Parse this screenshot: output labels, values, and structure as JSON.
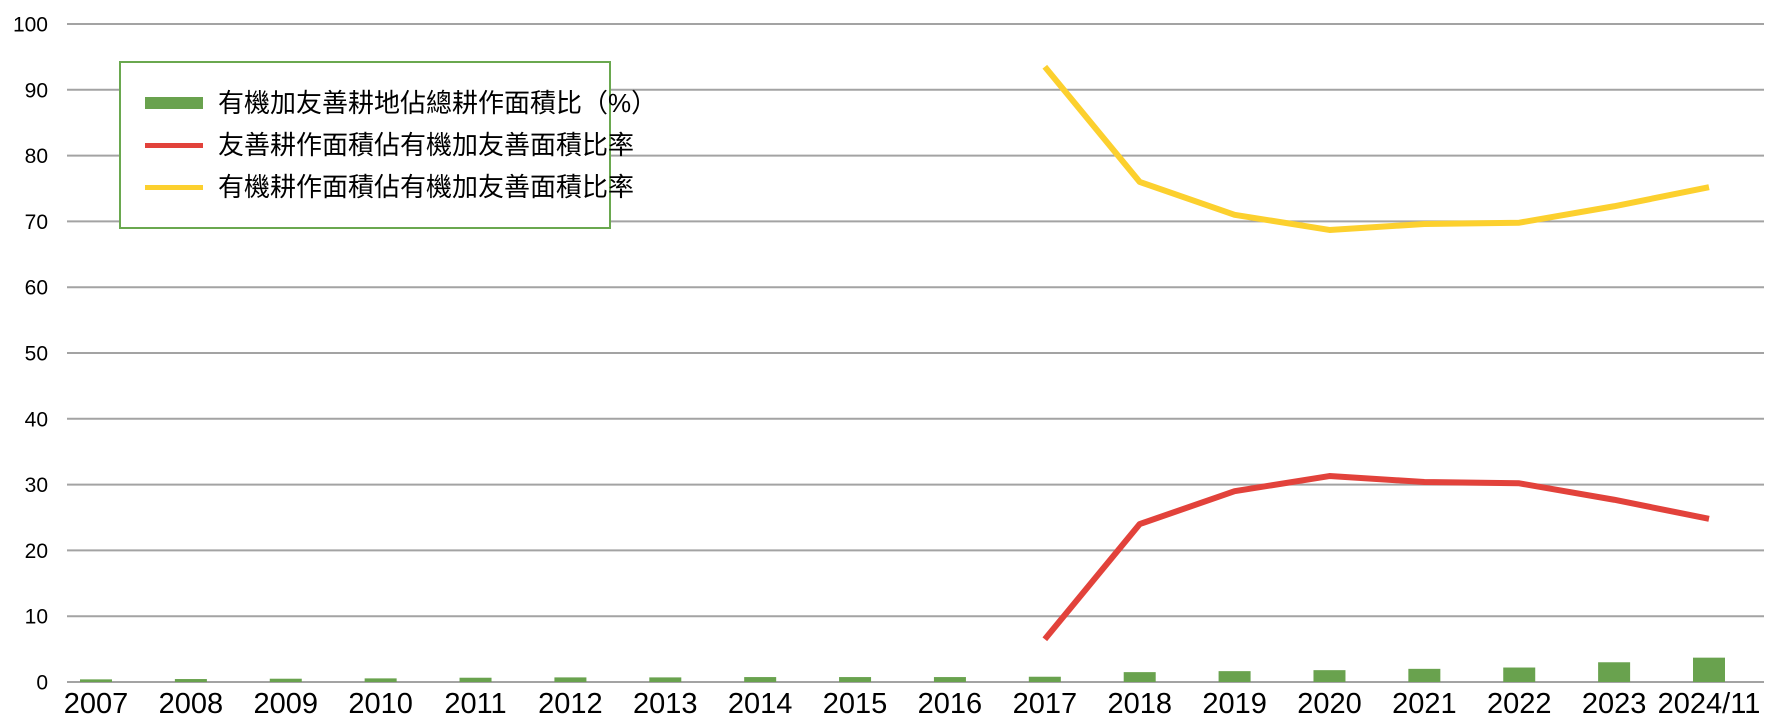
{
  "chart_data": {
    "type": "combo",
    "title": "",
    "xlabel": "",
    "ylabel": "",
    "categories": [
      "2007",
      "2008",
      "2009",
      "2010",
      "2011",
      "2012",
      "2013",
      "2014",
      "2015",
      "2016",
      "2017",
      "2018",
      "2019",
      "2020",
      "2021",
      "2022",
      "2023",
      "2024/11"
    ],
    "series": [
      {
        "name": "有機加友善耕地佔總耕作面積比（%）",
        "type": "bar",
        "color": "#69a24e",
        "values": [
          0.4,
          0.45,
          0.5,
          0.55,
          0.65,
          0.7,
          0.7,
          0.75,
          0.75,
          0.75,
          0.8,
          1.5,
          1.65,
          1.8,
          2.0,
          2.2,
          3.0,
          3.7
        ]
      },
      {
        "name": "友善耕作面積佔有機加友善面積比率",
        "type": "line",
        "color": "#e2423b",
        "values": [
          null,
          null,
          null,
          null,
          null,
          null,
          null,
          null,
          null,
          null,
          6.5,
          24.0,
          29.0,
          31.3,
          30.4,
          30.2,
          27.7,
          24.8
        ]
      },
      {
        "name": "有機耕作面積佔有機加友善面積比率",
        "type": "line",
        "color": "#fcd02e",
        "values": [
          null,
          null,
          null,
          null,
          null,
          null,
          null,
          null,
          null,
          null,
          93.5,
          76.0,
          71.0,
          68.7,
          69.6,
          69.8,
          72.3,
          75.2
        ]
      }
    ],
    "ylim": [
      0,
      100
    ],
    "ytick_interval": 10,
    "yticks": [
      0,
      10,
      20,
      30,
      40,
      50,
      60,
      70,
      80,
      90,
      100
    ],
    "grid": true,
    "grid_color": "#a3a3a3",
    "text_color": "#000000",
    "legend_position": "top-left",
    "legend_border_color": "#6aa84f",
    "background_color": "#ffffff"
  }
}
